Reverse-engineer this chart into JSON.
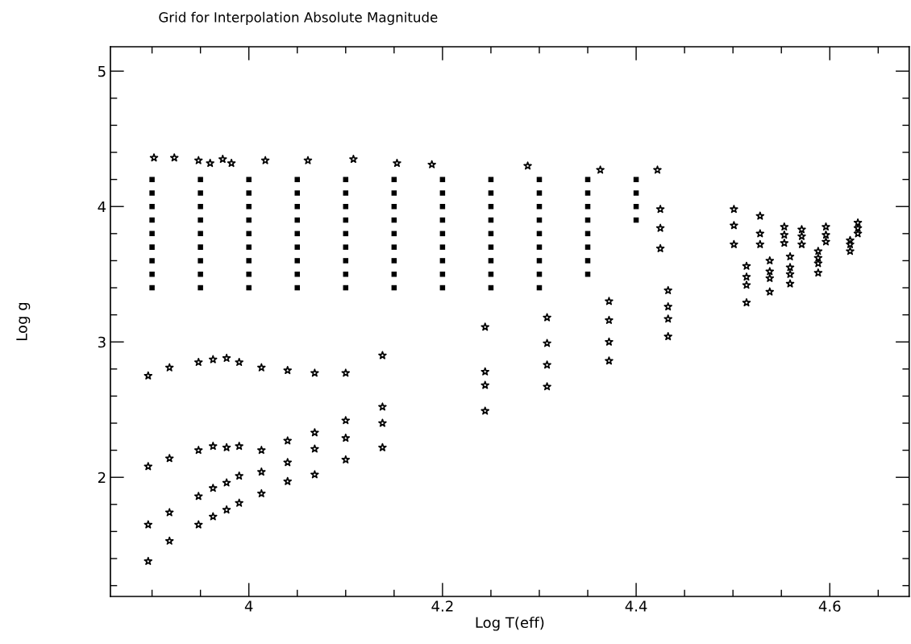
{
  "chart_data": {
    "type": "scatter",
    "title": "Grid for Interpolation Absolute Magnitude",
    "xlabel": "Log T(eff)",
    "ylabel": "Log g",
    "xlim": [
      3.857,
      4.682
    ],
    "ylim": [
      1.12,
      5.18
    ],
    "xticks": [
      {
        "value": 3.9,
        "label": null
      },
      {
        "value": 3.95,
        "label": null
      },
      4,
      {
        "value": 4.05,
        "label": null
      },
      {
        "value": 4.1,
        "label": null
      },
      {
        "value": 4.15,
        "label": null
      },
      4.2,
      {
        "value": 4.25,
        "label": null
      },
      {
        "value": 4.3,
        "label": null
      },
      {
        "value": 4.35,
        "label": null
      },
      4.4,
      {
        "value": 4.45,
        "label": null
      },
      {
        "value": 4.5,
        "label": null
      },
      {
        "value": 4.55,
        "label": null
      },
      4.6,
      {
        "value": 4.65,
        "label": null
      }
    ],
    "yticks": [
      {
        "value": 1.2,
        "label": null
      },
      {
        "value": 1.4,
        "label": null
      },
      {
        "value": 1.6,
        "label": null
      },
      {
        "value": 1.8,
        "label": null
      },
      2,
      {
        "value": 2.2,
        "label": null
      },
      {
        "value": 2.4,
        "label": null
      },
      {
        "value": 2.6,
        "label": null
      },
      {
        "value": 2.8,
        "label": null
      },
      3,
      {
        "value": 3.2,
        "label": null
      },
      {
        "value": 3.4,
        "label": null
      },
      {
        "value": 3.6,
        "label": null
      },
      {
        "value": 3.8,
        "label": null
      },
      4,
      {
        "value": 4.2,
        "label": null
      },
      {
        "value": 4.4,
        "label": null
      },
      {
        "value": 4.6,
        "label": null
      },
      {
        "value": 4.8,
        "label": null
      },
      5
    ],
    "grid": false,
    "series": [
      {
        "color": "#000000",
        "marker": "square",
        "x": [
          3.9,
          3.9,
          3.9,
          3.9,
          3.9,
          3.9,
          3.9,
          3.9,
          3.9,
          3.95,
          3.95,
          3.95,
          3.95,
          3.95,
          3.95,
          3.95,
          3.95,
          3.95,
          4.0,
          4.0,
          4.0,
          4.0,
          4.0,
          4.0,
          4.0,
          4.0,
          4.0,
          4.05,
          4.05,
          4.05,
          4.05,
          4.05,
          4.05,
          4.05,
          4.05,
          4.05,
          4.1,
          4.1,
          4.1,
          4.1,
          4.1,
          4.1,
          4.1,
          4.1,
          4.1,
          4.15,
          4.15,
          4.15,
          4.15,
          4.15,
          4.15,
          4.15,
          4.15,
          4.15,
          4.2,
          4.2,
          4.2,
          4.2,
          4.2,
          4.2,
          4.2,
          4.2,
          4.2,
          4.25,
          4.25,
          4.25,
          4.25,
          4.25,
          4.25,
          4.25,
          4.25,
          4.25,
          4.3,
          4.3,
          4.3,
          4.3,
          4.3,
          4.3,
          4.3,
          4.3,
          4.3,
          4.35,
          4.35,
          4.35,
          4.35,
          4.35,
          4.35,
          4.35,
          4.35,
          4.4,
          4.4,
          4.4,
          4.4
        ],
        "values": [
          3.4,
          3.5,
          3.6,
          3.7,
          3.8,
          3.9,
          4.0,
          4.1,
          4.2,
          3.4,
          3.5,
          3.6,
          3.7,
          3.8,
          3.9,
          4.0,
          4.1,
          4.2,
          3.4,
          3.5,
          3.6,
          3.7,
          3.8,
          3.9,
          4.0,
          4.1,
          4.2,
          3.4,
          3.5,
          3.6,
          3.7,
          3.8,
          3.9,
          4.0,
          4.1,
          4.2,
          3.4,
          3.5,
          3.6,
          3.7,
          3.8,
          3.9,
          4.0,
          4.1,
          4.2,
          3.4,
          3.5,
          3.6,
          3.7,
          3.8,
          3.9,
          4.0,
          4.1,
          4.2,
          3.4,
          3.5,
          3.6,
          3.7,
          3.8,
          3.9,
          4.0,
          4.1,
          4.2,
          3.4,
          3.5,
          3.6,
          3.7,
          3.8,
          3.9,
          4.0,
          4.1,
          4.2,
          3.4,
          3.5,
          3.6,
          3.7,
          3.8,
          3.9,
          4.0,
          4.1,
          4.2,
          3.5,
          3.6,
          3.7,
          3.8,
          3.9,
          4.0,
          4.1,
          4.2,
          3.9,
          4.0,
          4.1,
          4.2
        ]
      },
      {
        "color": "#000000",
        "marker": "star",
        "x": [
          3.902,
          3.923,
          3.948,
          3.96,
          3.973,
          3.982,
          4.017,
          4.061,
          4.108,
          4.153,
          4.189,
          4.288,
          4.363,
          4.422,
          4.244,
          4.244,
          4.244,
          4.244,
          4.308,
          4.308,
          4.308,
          4.308,
          4.372,
          4.372,
          4.372,
          4.372,
          4.425,
          4.425,
          4.425,
          4.433,
          4.433,
          4.433,
          4.433,
          4.501,
          4.501,
          4.501,
          4.514,
          4.514,
          4.514,
          4.514,
          4.528,
          4.528,
          4.528,
          4.538,
          4.538,
          4.538,
          4.538,
          4.553,
          4.553,
          4.553,
          4.559,
          4.559,
          4.559,
          4.559,
          4.571,
          4.571,
          4.571,
          4.588,
          4.588,
          4.588,
          4.588,
          4.596,
          4.596,
          4.596,
          4.621,
          4.621,
          4.621,
          4.629,
          4.629,
          4.629,
          3.896,
          3.918,
          3.948,
          3.963,
          3.977,
          3.99,
          4.013,
          4.04,
          4.068,
          4.1,
          4.138,
          4.138,
          4.138,
          4.138,
          4.1,
          4.1,
          4.1,
          4.068,
          4.068,
          4.068,
          4.04,
          4.04,
          4.04,
          4.013,
          4.013,
          4.013,
          3.99,
          3.99,
          3.99,
          3.977,
          3.977,
          3.977,
          3.963,
          3.963,
          3.963,
          3.948,
          3.948,
          3.948,
          3.918,
          3.918,
          3.918,
          3.896,
          3.896,
          3.896
        ],
        "values": [
          4.36,
          4.36,
          4.34,
          4.32,
          4.35,
          4.32,
          4.34,
          4.34,
          4.35,
          4.32,
          4.31,
          4.3,
          4.27,
          4.27,
          3.11,
          2.78,
          2.68,
          2.49,
          3.18,
          2.99,
          2.83,
          2.67,
          3.3,
          3.16,
          3.0,
          2.86,
          3.98,
          3.84,
          3.69,
          3.38,
          3.26,
          3.17,
          3.04,
          3.98,
          3.86,
          3.72,
          3.56,
          3.48,
          3.42,
          3.29,
          3.93,
          3.8,
          3.72,
          3.6,
          3.52,
          3.47,
          3.37,
          3.85,
          3.79,
          3.73,
          3.63,
          3.55,
          3.5,
          3.43,
          3.83,
          3.78,
          3.72,
          3.67,
          3.62,
          3.58,
          3.51,
          3.85,
          3.79,
          3.74,
          3.75,
          3.72,
          3.67,
          3.88,
          3.84,
          3.8,
          2.75,
          2.81,
          2.85,
          2.87,
          2.88,
          2.85,
          2.81,
          2.79,
          2.77,
          2.77,
          2.9,
          2.52,
          2.4,
          2.22,
          2.42,
          2.29,
          2.13,
          2.33,
          2.21,
          2.02,
          2.27,
          2.11,
          1.97,
          2.2,
          2.04,
          1.88,
          2.23,
          2.01,
          1.81,
          2.22,
          1.96,
          1.76,
          2.23,
          1.92,
          1.71,
          2.2,
          1.86,
          1.65,
          2.14,
          1.74,
          1.53,
          2.08,
          1.65,
          1.38
        ]
      }
    ]
  }
}
